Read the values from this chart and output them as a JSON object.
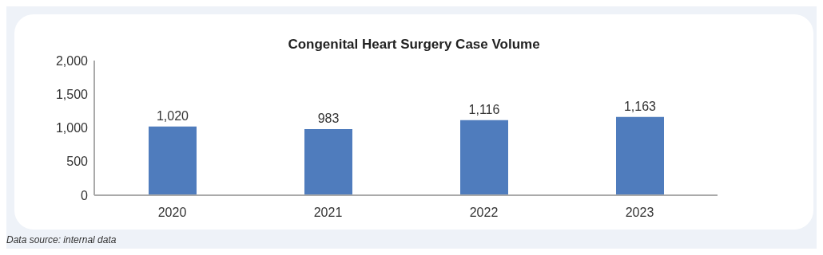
{
  "chart_data": {
    "type": "bar",
    "title": "Congenital Heart Surgery Case Volume",
    "categories": [
      "2020",
      "2021",
      "2022",
      "2023"
    ],
    "values": [
      1020,
      983,
      1116,
      1163
    ],
    "value_labels": [
      "1,020",
      "983",
      "1,116",
      "1,163"
    ],
    "color": "#4f7cbd",
    "ylim": [
      0,
      2000
    ],
    "yticks": [
      {
        "value": 0,
        "label": "0"
      },
      {
        "value": 500,
        "label": "500"
      },
      {
        "value": 1000,
        "label": "1,000"
      },
      {
        "value": 1500,
        "label": "1,500"
      },
      {
        "value": 2000,
        "label": "2,000"
      }
    ],
    "grid": false,
    "annotations": [
      "Data source: internal data"
    ]
  }
}
